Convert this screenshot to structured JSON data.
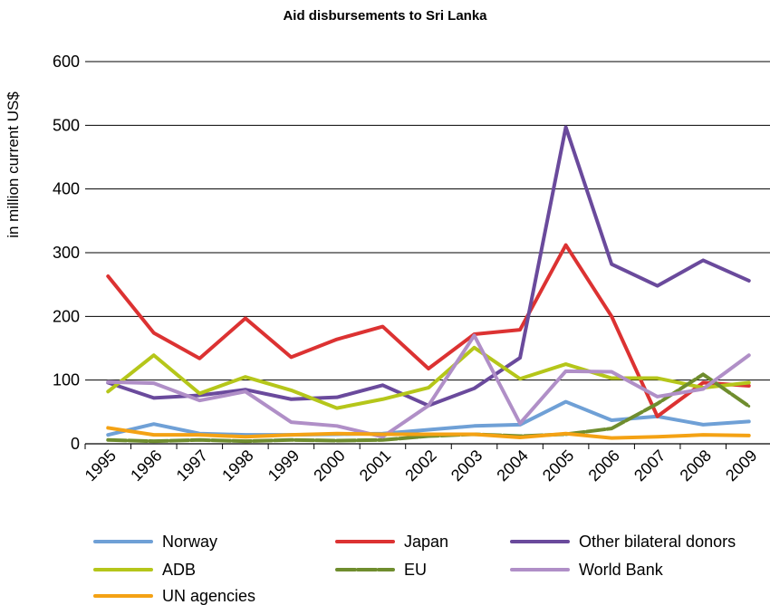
{
  "chart_data": {
    "type": "line",
    "title": "Aid disbursements to Sri Lanka",
    "ylabel": "in million current US$",
    "xlabel": "",
    "ylim": [
      0,
      600
    ],
    "yticks": [
      "0",
      "100",
      "200",
      "300",
      "400",
      "500",
      "600"
    ],
    "categories": [
      "1995",
      "1996",
      "1997",
      "1998",
      "1999",
      "2000",
      "2001",
      "2002",
      "2003",
      "2004",
      "2005",
      "2006",
      "2007",
      "2008",
      "2009"
    ],
    "grid": "horizontal",
    "legend_position": "bottom",
    "series": [
      {
        "name": "Norway",
        "color": "#6fa0d6",
        "dashed": false,
        "values": [
          14,
          31,
          16,
          14,
          14,
          15,
          16,
          22,
          28,
          30,
          66,
          37,
          43,
          30,
          35
        ]
      },
      {
        "name": "Japan",
        "color": "#dc3232",
        "dashed": false,
        "values": [
          263,
          174,
          134,
          197,
          136,
          164,
          184,
          118,
          172,
          179,
          312,
          200,
          43,
          96,
          91
        ]
      },
      {
        "name": "Other bilateral donors",
        "color": "#6a4a9c",
        "dashed": false,
        "values": [
          96,
          72,
          76,
          85,
          70,
          73,
          92,
          60,
          87,
          135,
          497,
          282,
          248,
          288,
          256
        ]
      },
      {
        "name": "ADB",
        "color": "#b5c61a",
        "dashed": false,
        "values": [
          82,
          139,
          79,
          105,
          84,
          56,
          70,
          88,
          151,
          102,
          125,
          103,
          103,
          88,
          96
        ]
      },
      {
        "name": "EU",
        "color": "#6f8d2e",
        "dashed": true,
        "values": [
          6,
          4,
          6,
          4,
          6,
          5,
          6,
          12,
          15,
          12,
          15,
          24,
          63,
          109,
          59
        ]
      },
      {
        "name": "World Bank",
        "color": "#b08fc7",
        "dashed": false,
        "values": [
          97,
          95,
          68,
          82,
          34,
          28,
          11,
          60,
          170,
          32,
          114,
          113,
          74,
          86,
          139
        ]
      },
      {
        "name": "UN agencies",
        "color": "#f4a214",
        "dashed": false,
        "values": [
          25,
          14,
          14,
          11,
          14,
          16,
          15,
          15,
          15,
          10,
          16,
          9,
          11,
          14,
          13
        ]
      }
    ]
  }
}
